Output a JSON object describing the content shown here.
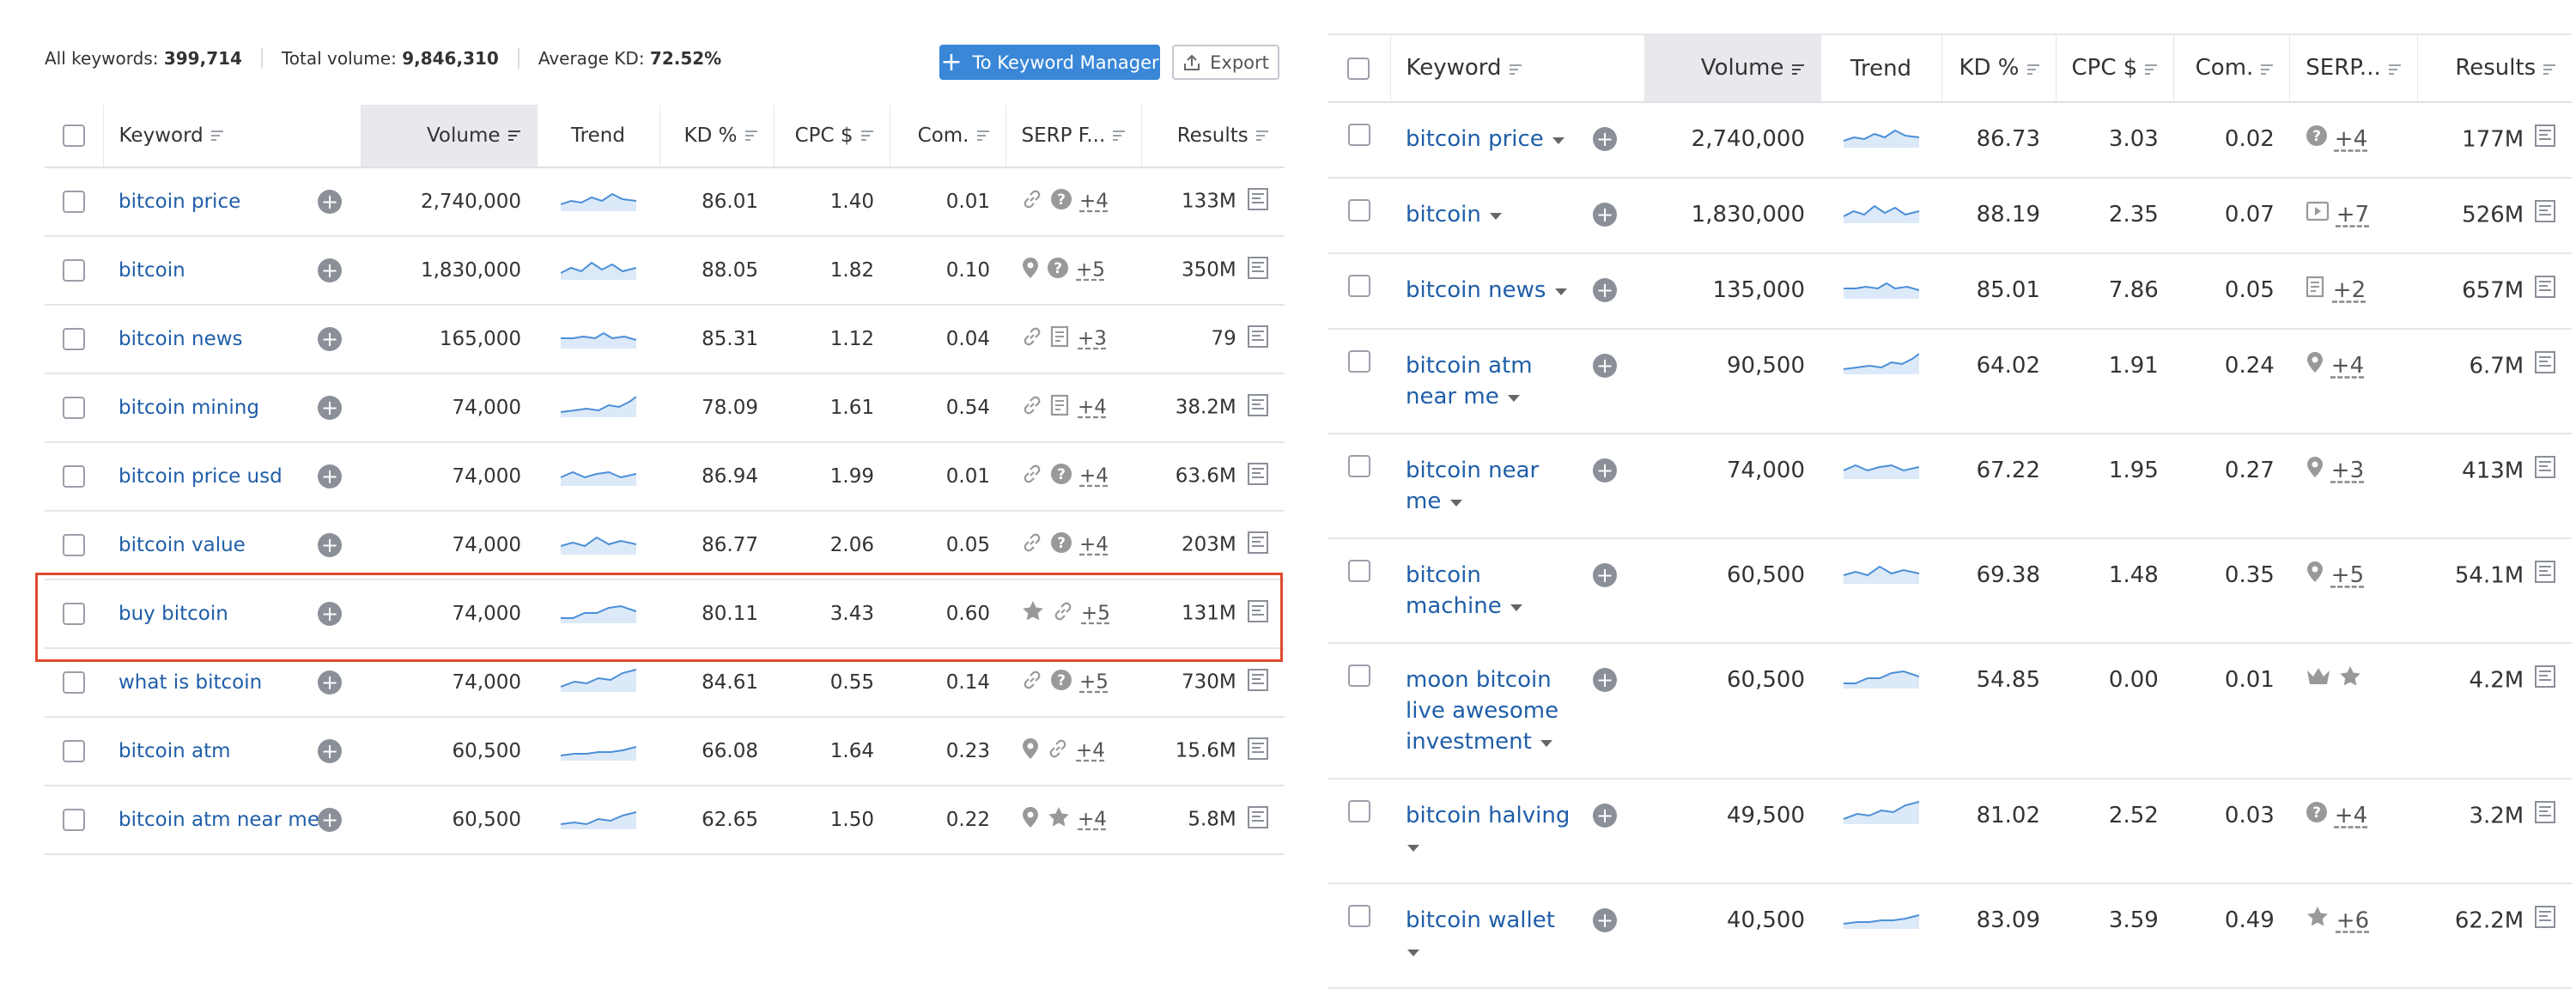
{
  "left": {
    "summary": [
      {
        "label": "All keywords:",
        "value": "399,714"
      },
      {
        "label": "Total volume:",
        "value": "9,846,310"
      },
      {
        "label": "Average KD:",
        "value": "72.52%"
      }
    ],
    "buttons": {
      "manager": "To Keyword Manager",
      "export": "Export"
    },
    "columns": [
      "Keyword",
      "Volume",
      "Trend",
      "KD %",
      "CPC $",
      "Com.",
      "SERP F...",
      "Results"
    ],
    "rows": [
      {
        "keyword": "bitcoin price",
        "volume": "2,740,000",
        "kd": "86.01",
        "cpc": "1.40",
        "com": "0.01",
        "serp": "+4",
        "results": "133M"
      },
      {
        "keyword": "bitcoin",
        "volume": "1,830,000",
        "kd": "88.05",
        "cpc": "1.82",
        "com": "0.10",
        "serp": "+5",
        "results": "350M"
      },
      {
        "keyword": "bitcoin news",
        "volume": "165,000",
        "kd": "85.31",
        "cpc": "1.12",
        "com": "0.04",
        "serp": "+3",
        "results": "79"
      },
      {
        "keyword": "bitcoin mining",
        "volume": "74,000",
        "kd": "78.09",
        "cpc": "1.61",
        "com": "0.54",
        "serp": "+4",
        "results": "38.2M"
      },
      {
        "keyword": "bitcoin price usd",
        "volume": "74,000",
        "kd": "86.94",
        "cpc": "1.99",
        "com": "0.01",
        "serp": "+4",
        "results": "63.6M"
      },
      {
        "keyword": "bitcoin value",
        "volume": "74,000",
        "kd": "86.77",
        "cpc": "2.06",
        "com": "0.05",
        "serp": "+4",
        "results": "203M"
      },
      {
        "keyword": "buy bitcoin",
        "volume": "74,000",
        "kd": "80.11",
        "cpc": "3.43",
        "com": "0.60",
        "serp": "+5",
        "results": "131M"
      },
      {
        "keyword": "what is bitcoin",
        "volume": "74,000",
        "kd": "84.61",
        "cpc": "0.55",
        "com": "0.14",
        "serp": "+5",
        "results": "730M"
      },
      {
        "keyword": "bitcoin atm",
        "volume": "60,500",
        "kd": "66.08",
        "cpc": "1.64",
        "com": "0.23",
        "serp": "+4",
        "results": "15.6M"
      },
      {
        "keyword": "bitcoin atm near me",
        "volume": "60,500",
        "kd": "62.65",
        "cpc": "1.50",
        "com": "0.22",
        "serp": "+4",
        "results": "5.8M"
      }
    ]
  },
  "right": {
    "columns": [
      "Keyword",
      "Volume",
      "Trend",
      "KD %",
      "CPC $",
      "Com.",
      "SERP...",
      "Results"
    ],
    "rows": [
      {
        "keyword": "bitcoin price",
        "volume": "2,740,000",
        "kd": "86.73",
        "cpc": "3.03",
        "com": "0.02",
        "serp": "+4",
        "results": "177M"
      },
      {
        "keyword": "bitcoin",
        "volume": "1,830,000",
        "kd": "88.19",
        "cpc": "2.35",
        "com": "0.07",
        "serp": "+7",
        "results": "526M"
      },
      {
        "keyword": "bitcoin news",
        "volume": "135,000",
        "kd": "85.01",
        "cpc": "7.86",
        "com": "0.05",
        "serp": "+2",
        "results": "657M"
      },
      {
        "keyword": "bitcoin atm near me",
        "volume": "90,500",
        "kd": "64.02",
        "cpc": "1.91",
        "com": "0.24",
        "serp": "+4",
        "results": "6.7M"
      },
      {
        "keyword": "bitcoin near me",
        "volume": "74,000",
        "kd": "67.22",
        "cpc": "1.95",
        "com": "0.27",
        "serp": "+3",
        "results": "413M"
      },
      {
        "keyword": "bitcoin machine",
        "volume": "60,500",
        "kd": "69.38",
        "cpc": "1.48",
        "com": "0.35",
        "serp": "+5",
        "results": "54.1M"
      },
      {
        "keyword": "moon bitcoin live awesome investment",
        "volume": "60,500",
        "kd": "54.85",
        "cpc": "0.00",
        "com": "0.01",
        "results": "4.2M"
      },
      {
        "keyword": "bitcoin halving",
        "volume": "49,500",
        "kd": "81.02",
        "cpc": "2.52",
        "com": "0.03",
        "serp": "+4",
        "results": "3.2M"
      },
      {
        "keyword": "bitcoin wallet",
        "volume": "40,500",
        "kd": "83.09",
        "cpc": "3.59",
        "com": "0.49",
        "serp": "+6",
        "results": "62.2M"
      }
    ]
  }
}
